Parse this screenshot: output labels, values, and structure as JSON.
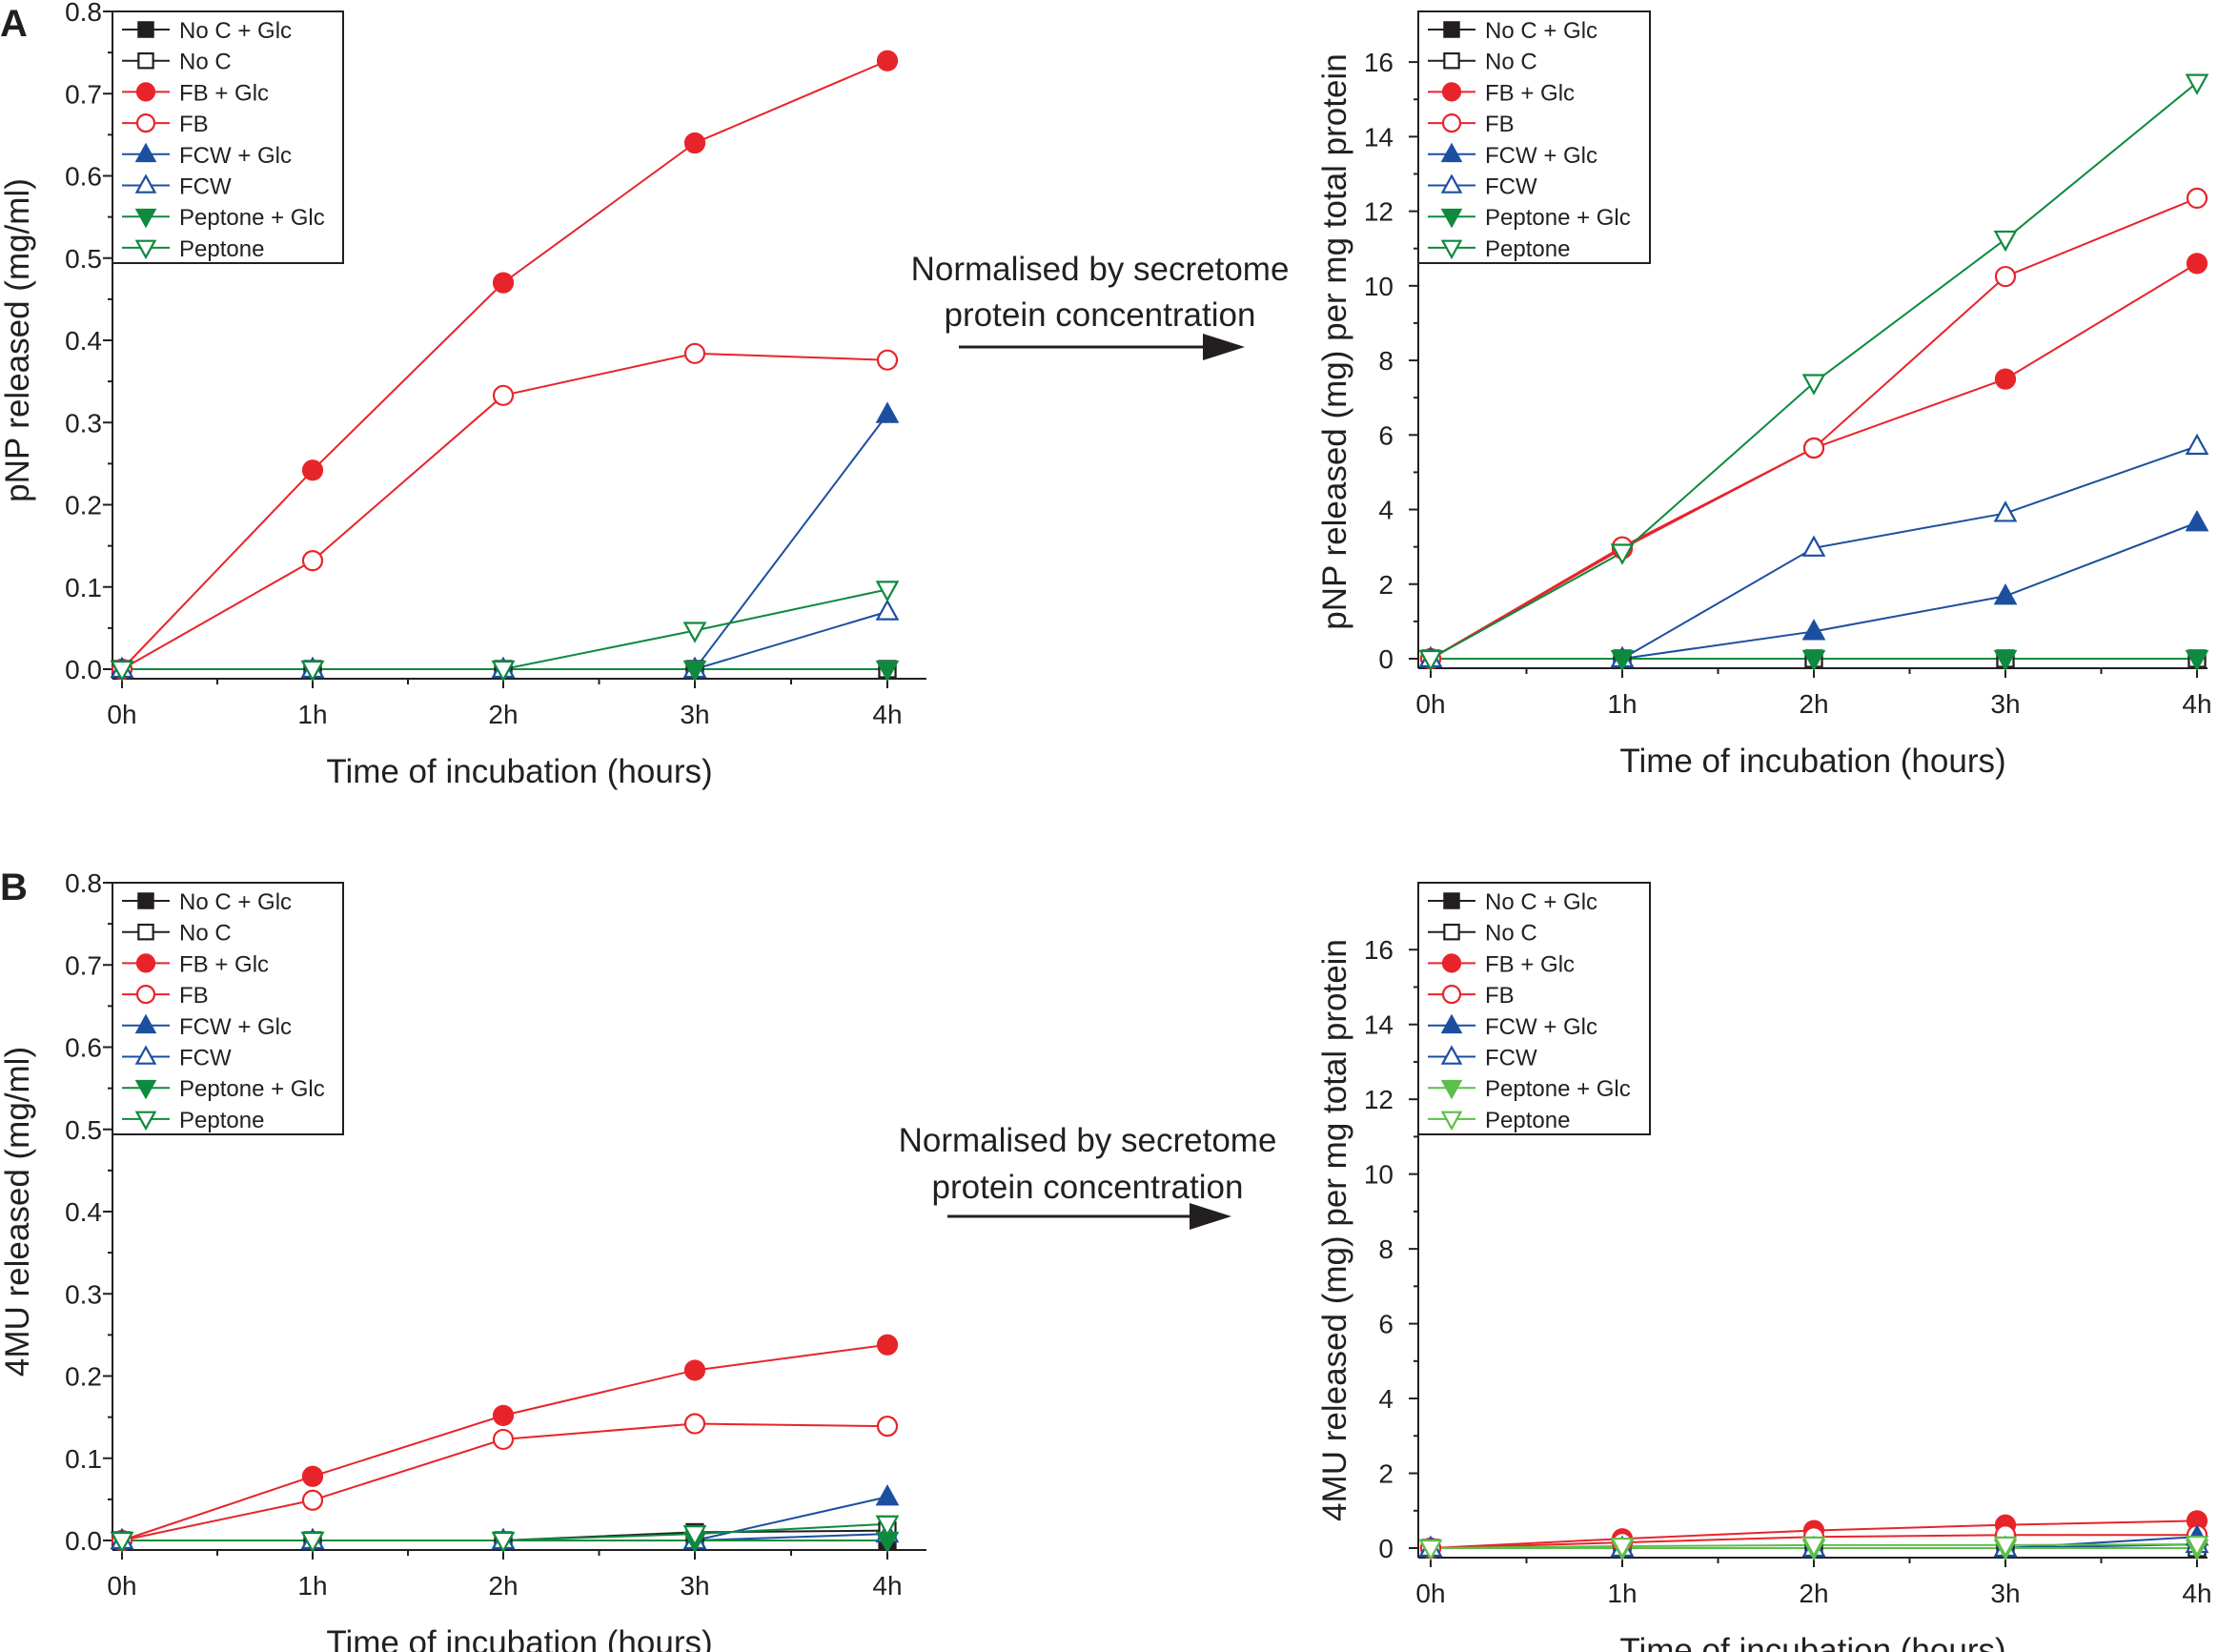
{
  "panel_labels": [
    "A",
    "B"
  ],
  "annotations": [
    {
      "line1": "Normalised by secretome",
      "line2": "protein concentration"
    },
    {
      "line1": "Normalised by secretome",
      "line2": "protein concentration"
    }
  ],
  "series_styles": {
    "No C + Glc": {
      "color": "#231f20",
      "marker": "square",
      "filled": true
    },
    "No C": {
      "color": "#231f20",
      "marker": "square",
      "filled": false
    },
    "FB + Glc": {
      "color": "#e8242b",
      "marker": "circle",
      "filled": true
    },
    "FB": {
      "color": "#e8242b",
      "marker": "circle",
      "filled": false
    },
    "FCW + Glc": {
      "color": "#1c4fa0",
      "marker": "triangle-up",
      "filled": true
    },
    "FCW": {
      "color": "#1c4fa0",
      "marker": "triangle-up",
      "filled": false
    },
    "Peptone + Glc": {
      "color": "#0e8a3e",
      "marker": "triangle-down",
      "filled": true
    },
    "Peptone": {
      "color": "#0e8a3e",
      "marker": "triangle-down",
      "filled": false
    },
    "Peptone + Glc (light)": {
      "color": "#5cbf4a",
      "marker": "triangle-down",
      "filled": true
    },
    "Peptone (light)": {
      "color": "#5cbf4a",
      "marker": "triangle-down",
      "filled": false
    }
  },
  "chart_data": [
    {
      "id": "A-left",
      "type": "line",
      "categories": [
        "0h",
        "1h",
        "2h",
        "3h",
        "4h"
      ],
      "xlabel": "Time of incubation (hours)",
      "ylabel": "pNP released (mg/ml)",
      "ylim": [
        0,
        0.8
      ],
      "yticks": [
        "0.0",
        "0.1",
        "0.2",
        "0.3",
        "0.4",
        "0.5",
        "0.6",
        "0.7",
        "0.8"
      ],
      "yticks_values": [
        0,
        0.1,
        0.2,
        0.3,
        0.4,
        0.5,
        0.6,
        0.7,
        0.8
      ],
      "legend_position": "top-left",
      "series": [
        {
          "name": "No C + Glc",
          "style": "No C + Glc",
          "values": [
            0,
            0,
            0,
            0,
            0
          ]
        },
        {
          "name": "No C",
          "style": "No C",
          "values": [
            0,
            0,
            0,
            0,
            0
          ]
        },
        {
          "name": "FB + Glc",
          "style": "FB + Glc",
          "values": [
            0,
            0.242,
            0.47,
            0.64,
            0.74
          ]
        },
        {
          "name": "FB",
          "style": "FB",
          "values": [
            0,
            0.132,
            0.333,
            0.384,
            0.376
          ]
        },
        {
          "name": "FCW + Glc",
          "style": "FCW + Glc",
          "values": [
            0,
            0,
            0,
            0,
            0.31
          ]
        },
        {
          "name": "FCW",
          "style": "FCW",
          "values": [
            0,
            0,
            0,
            0,
            0.07
          ]
        },
        {
          "name": "Peptone + Glc",
          "style": "Peptone + Glc",
          "values": [
            0,
            0,
            0,
            0,
            0
          ]
        },
        {
          "name": "Peptone",
          "style": "Peptone",
          "values": [
            0,
            0,
            0,
            0.047,
            0.097
          ]
        }
      ]
    },
    {
      "id": "A-right",
      "type": "line",
      "categories": [
        "0h",
        "1h",
        "2h",
        "3h",
        "4h"
      ],
      "xlabel": "Time of incubation (hours)",
      "ylabel": "pNP released (mg) per mg total protein",
      "ylim": [
        0,
        17
      ],
      "yticks": [
        "0",
        "2",
        "4",
        "6",
        "8",
        "10",
        "12",
        "14",
        "16"
      ],
      "yticks_values": [
        0,
        2,
        4,
        6,
        8,
        10,
        12,
        14,
        16
      ],
      "legend_position": "top-left",
      "series": [
        {
          "name": "No C + Glc",
          "style": "No C + Glc",
          "values": [
            0,
            0,
            0,
            0,
            0
          ]
        },
        {
          "name": "No C",
          "style": "No C",
          "values": [
            0,
            0,
            0,
            0,
            0
          ]
        },
        {
          "name": "FB + Glc",
          "style": "FB + Glc",
          "values": [
            0,
            2.95,
            5.65,
            7.5,
            10.6
          ]
        },
        {
          "name": "FB",
          "style": "FB",
          "values": [
            0,
            3.0,
            5.65,
            10.25,
            12.35
          ]
        },
        {
          "name": "FCW + Glc",
          "style": "FCW + Glc",
          "values": [
            0,
            0,
            0.73,
            1.68,
            3.65
          ]
        },
        {
          "name": "FCW",
          "style": "FCW",
          "values": [
            0,
            0,
            2.97,
            3.9,
            5.7
          ]
        },
        {
          "name": "Peptone + Glc",
          "style": "Peptone + Glc",
          "values": [
            0,
            0,
            0,
            0,
            0
          ]
        },
        {
          "name": "Peptone",
          "style": "Peptone",
          "values": [
            0,
            2.85,
            7.4,
            11.25,
            15.45
          ]
        }
      ]
    },
    {
      "id": "B-left",
      "type": "line",
      "categories": [
        "0h",
        "1h",
        "2h",
        "3h",
        "4h"
      ],
      "xlabel": "Time of incubation (hours)",
      "ylabel": "4MU released (mg/ml)",
      "ylim": [
        0,
        0.8
      ],
      "yticks": [
        "0.0",
        "0.1",
        "0.2",
        "0.3",
        "0.4",
        "0.5",
        "0.6",
        "0.7",
        "0.8"
      ],
      "yticks_values": [
        0,
        0.1,
        0.2,
        0.3,
        0.4,
        0.5,
        0.6,
        0.7,
        0.8
      ],
      "legend_position": "top-left",
      "series": [
        {
          "name": "No C + Glc",
          "style": "No C + Glc",
          "values": [
            0,
            0,
            0,
            0,
            0
          ]
        },
        {
          "name": "No C",
          "style": "No C",
          "values": [
            0,
            0,
            0,
            0.01,
            0.012
          ]
        },
        {
          "name": "FB + Glc",
          "style": "FB + Glc",
          "values": [
            0,
            0.078,
            0.152,
            0.207,
            0.238
          ]
        },
        {
          "name": "FB",
          "style": "FB",
          "values": [
            0,
            0.049,
            0.123,
            0.142,
            0.139
          ]
        },
        {
          "name": "FCW + Glc",
          "style": "FCW + Glc",
          "values": [
            0,
            0,
            0,
            0,
            0.053
          ]
        },
        {
          "name": "FCW",
          "style": "FCW",
          "values": [
            0,
            0,
            0,
            0,
            0.008
          ]
        },
        {
          "name": "Peptone + Glc",
          "style": "Peptone + Glc",
          "values": [
            0,
            0,
            0,
            0,
            0
          ]
        },
        {
          "name": "Peptone",
          "style": "Peptone",
          "values": [
            0,
            0,
            0,
            0.008,
            0.02
          ]
        }
      ]
    },
    {
      "id": "B-right",
      "type": "line",
      "categories": [
        "0h",
        "1h",
        "2h",
        "3h",
        "4h"
      ],
      "xlabel": "Time of incubation (hours)",
      "ylabel": "4MU released (mg) per mg total protein",
      "ylim": [
        0,
        17
      ],
      "yticks": [
        "0",
        "2",
        "4",
        "6",
        "8",
        "10",
        "12",
        "14",
        "16"
      ],
      "yticks_values": [
        0,
        2,
        4,
        6,
        8,
        10,
        12,
        14,
        16
      ],
      "legend_position": "top-left",
      "series": [
        {
          "name": "No C + Glc",
          "style": "No C + Glc",
          "values": [
            0,
            0,
            0,
            0,
            0
          ]
        },
        {
          "name": "No C",
          "style": "No C",
          "values": [
            0,
            0,
            0,
            0,
            0
          ]
        },
        {
          "name": "FB + Glc",
          "style": "FB + Glc",
          "values": [
            0,
            0.25,
            0.47,
            0.62,
            0.73
          ]
        },
        {
          "name": "FB",
          "style": "FB",
          "values": [
            0,
            0.15,
            0.3,
            0.35,
            0.35
          ]
        },
        {
          "name": "FCW + Glc",
          "style": "FCW + Glc",
          "values": [
            0,
            0,
            0,
            0,
            0.3
          ]
        },
        {
          "name": "FCW",
          "style": "FCW",
          "values": [
            0,
            0,
            0,
            0,
            0.1
          ]
        },
        {
          "name": "Peptone + Glc",
          "style": "Peptone + Glc (light)",
          "values": [
            0,
            0,
            0,
            0,
            0
          ]
        },
        {
          "name": "Peptone",
          "style": "Peptone (light)",
          "values": [
            0,
            0.05,
            0.08,
            0.08,
            0.1
          ]
        }
      ]
    }
  ]
}
